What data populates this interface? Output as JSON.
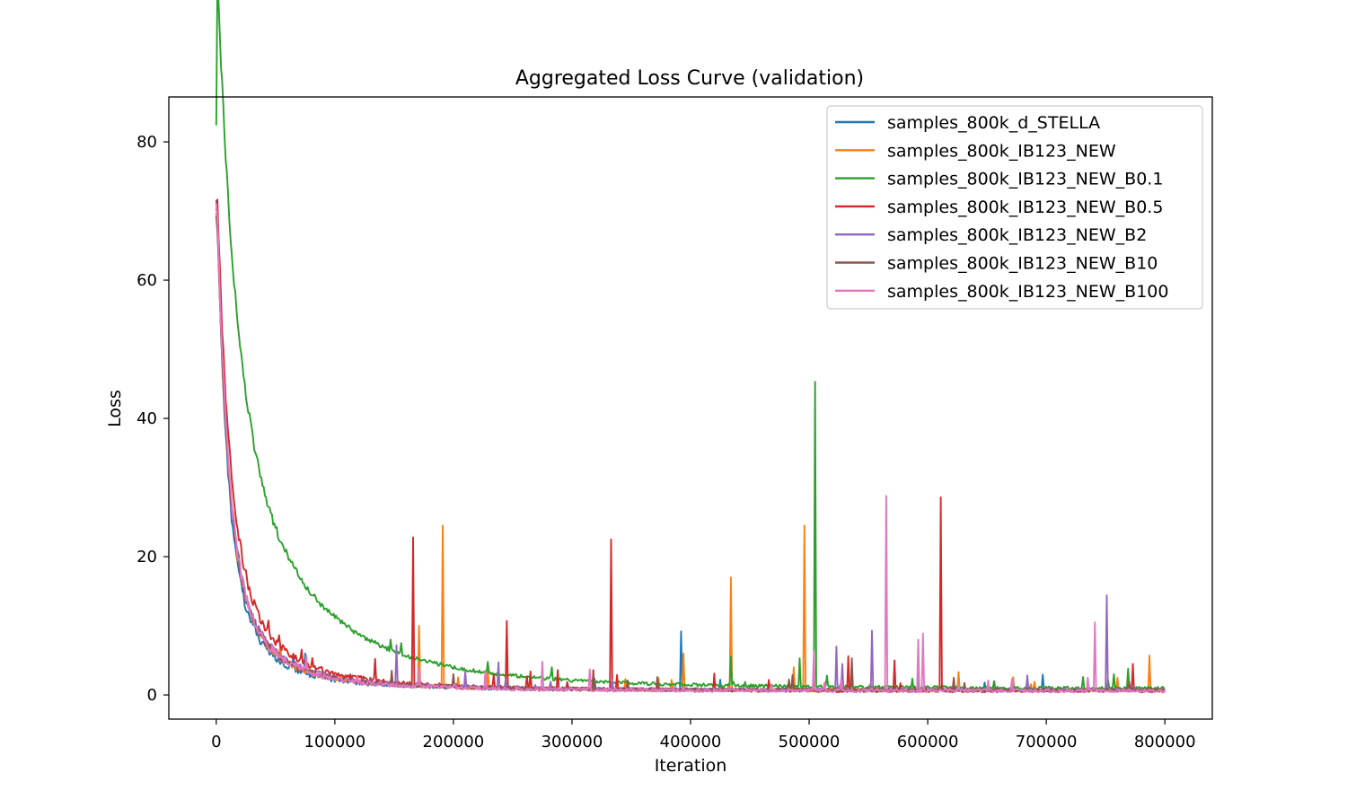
{
  "chart_data": {
    "type": "line",
    "title": "Aggregated Loss Curve (validation)",
    "xlabel": "Iteration",
    "ylabel": "Loss",
    "xlim": [
      -40000,
      840000
    ],
    "ylim": [
      -3.5,
      86.5
    ],
    "xticks": [
      0,
      100000,
      200000,
      300000,
      400000,
      500000,
      600000,
      700000,
      800000
    ],
    "yticks": [
      0,
      20,
      40,
      60,
      80
    ],
    "grid": false,
    "legend_position": "top-right",
    "series": [
      {
        "name": "samples_800k_d_STELLA",
        "color": "#1f77b4",
        "base": {
          "start": 72,
          "a": 1.6,
          "tau1": 8000,
          "b": 3.5,
          "tau2": 90000,
          "floor": 0.7
        },
        "spikes": [
          [
            392000,
            9.2
          ],
          [
            75000,
            6.0
          ],
          [
            656000,
            2.0
          ],
          [
            648000,
            1.8
          ]
        ]
      },
      {
        "name": "samples_800k_IB123_NEW",
        "color": "#ff7f0e",
        "base": {
          "start": 70,
          "a": 1.4,
          "tau1": 9000,
          "b": 3.2,
          "tau2": 100000,
          "floor": 0.7
        },
        "spikes": [
          [
            171000,
            10.0
          ],
          [
            191000,
            24.5
          ],
          [
            229000,
            4.2
          ],
          [
            345000,
            2.3
          ],
          [
            394000,
            6.0
          ],
          [
            434000,
            17.0
          ],
          [
            487000,
            4.0
          ],
          [
            496000,
            24.5
          ],
          [
            626000,
            3.3
          ],
          [
            787000,
            5.7
          ],
          [
            760000,
            2.5
          ]
        ]
      },
      {
        "name": "samples_800k_IB123_NEW_B0.1",
        "color": "#2ca02c",
        "base": {
          "start": 82.5,
          "a": 22,
          "tau1": 15000,
          "b": 4.5,
          "tau2": 180000,
          "floor": 0.9
        },
        "spikes": [
          [
            18000,
            17.5
          ],
          [
            24000,
            13.5
          ],
          [
            95000,
            6.0
          ],
          [
            283000,
            4.0
          ],
          [
            434000,
            5.5
          ],
          [
            492000,
            5.3
          ],
          [
            505000,
            45.3
          ],
          [
            656000,
            2.0
          ],
          [
            731000,
            2.6
          ],
          [
            769000,
            3.8
          ],
          [
            757000,
            3.0
          ]
        ]
      },
      {
        "name": "samples_800k_IB123_NEW_B0.5",
        "color": "#d62728",
        "base": {
          "start": 70,
          "a": 3,
          "tau1": 10000,
          "b": 4,
          "tau2": 110000,
          "floor": 0.6
        },
        "spikes": [
          [
            20000,
            12.5
          ],
          [
            28000,
            9.5
          ],
          [
            134000,
            5.2
          ],
          [
            166000,
            22.8
          ],
          [
            234000,
            3.0
          ],
          [
            245000,
            10.7
          ],
          [
            265000,
            3.4
          ],
          [
            288000,
            3.6
          ],
          [
            318000,
            3.6
          ],
          [
            333000,
            22.5
          ],
          [
            420000,
            3.1
          ],
          [
            533000,
            5.6
          ],
          [
            572000,
            5.0
          ],
          [
            611000,
            28.6
          ],
          [
            773000,
            4.5
          ]
        ]
      },
      {
        "name": "samples_800k_IB123_NEW_B2",
        "color": "#9467bd",
        "base": {
          "start": 69,
          "a": 2,
          "tau1": 9000,
          "b": 3.5,
          "tau2": 100000,
          "floor": 0.7
        },
        "spikes": [
          [
            40000,
            7.5
          ],
          [
            152000,
            7.2
          ],
          [
            238000,
            4.7
          ],
          [
            523000,
            7.0
          ],
          [
            553000,
            9.3
          ],
          [
            684000,
            2.8
          ],
          [
            751000,
            14.4
          ],
          [
            528000,
            4.5
          ]
        ]
      },
      {
        "name": "samples_800k_IB123_NEW_B10",
        "color": "#8c564b",
        "base": {
          "start": 69,
          "a": 1.5,
          "tau1": 9000,
          "b": 3.3,
          "tau2": 100000,
          "floor": 0.7
        },
        "spikes": [
          [
            32000,
            6.5
          ],
          [
            148000,
            3.5
          ],
          [
            318000,
            3.0
          ],
          [
            536000,
            5.3
          ],
          [
            622000,
            2.5
          ]
        ]
      },
      {
        "name": "samples_800k_IB123_NEW_B100",
        "color": "#e377c2",
        "base": {
          "start": 70.7,
          "a": 1.8,
          "tau1": 9000,
          "b": 3.3,
          "tau2": 100000,
          "floor": 0.6
        },
        "spikes": [
          [
            30000,
            8.0
          ],
          [
            171000,
            4.0
          ],
          [
            227000,
            3.5
          ],
          [
            275000,
            4.8
          ],
          [
            315000,
            3.7
          ],
          [
            504000,
            6.3
          ],
          [
            565000,
            28.8
          ],
          [
            592000,
            8.0
          ],
          [
            596000,
            8.9
          ],
          [
            741000,
            10.5
          ],
          [
            735000,
            2.5
          ]
        ]
      }
    ]
  }
}
